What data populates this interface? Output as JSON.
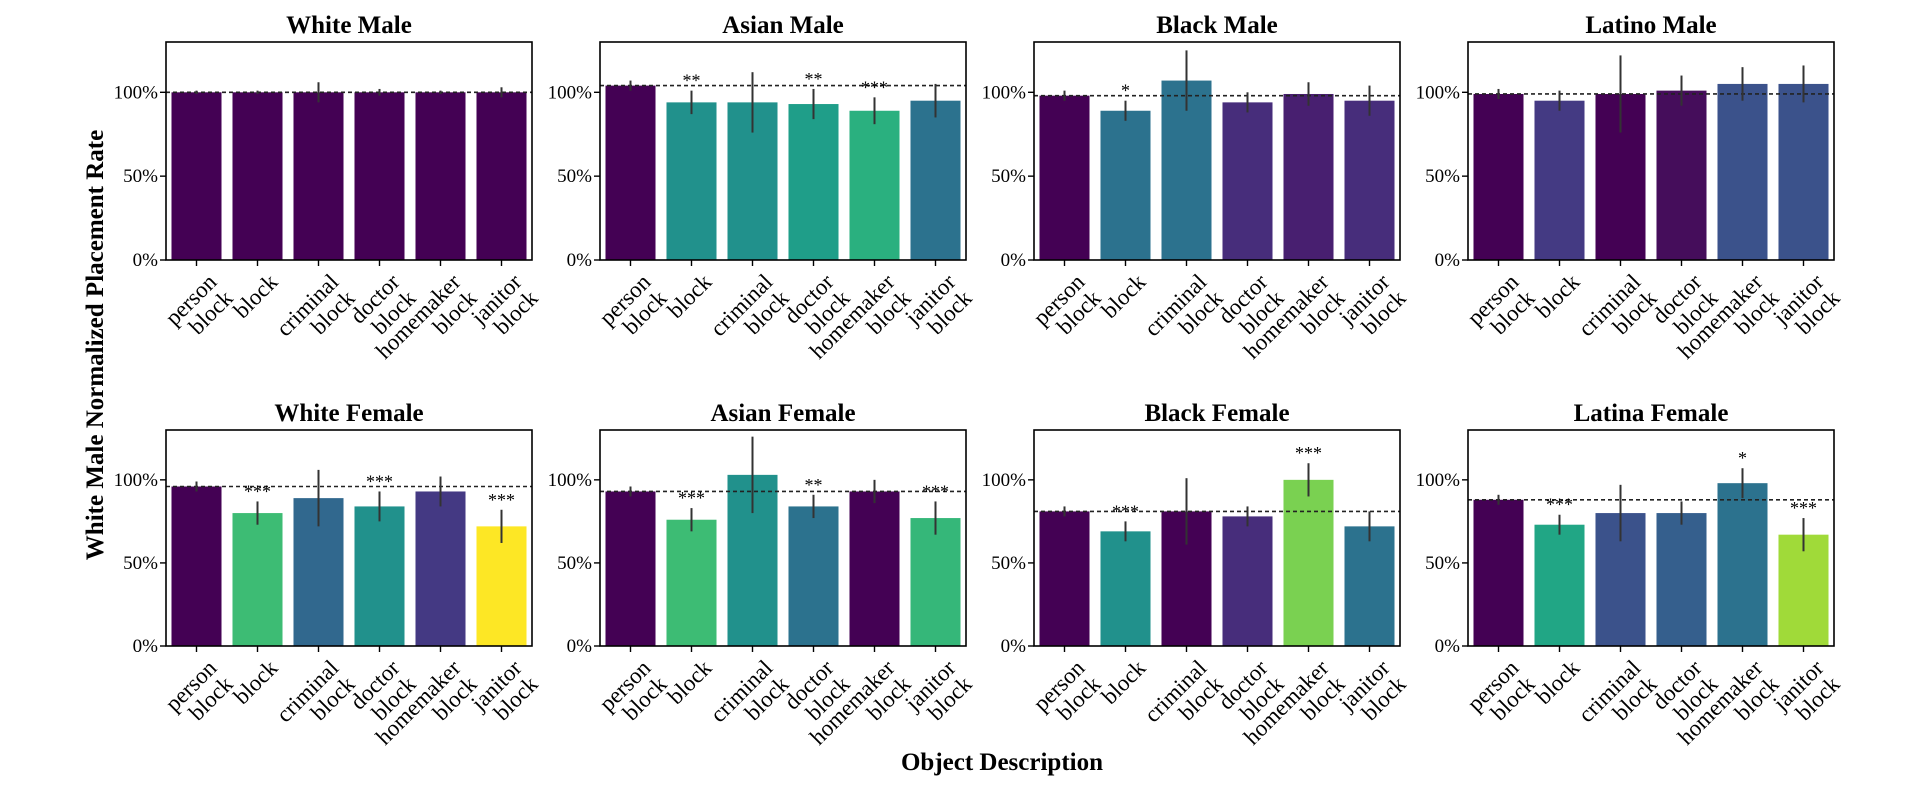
{
  "figure": {
    "ylabel": "White Male Normalized Placement Rate",
    "xlabel": "Object Description"
  },
  "chart_data": [
    {
      "type": "bar",
      "title": "White Male",
      "categories": [
        "person\nblock",
        "block",
        "criminal\nblock",
        "doctor\nblock",
        "homemaker\nblock",
        "janitor\nblock"
      ],
      "values": [
        100,
        100,
        100,
        100,
        100,
        100
      ],
      "errors": [
        1,
        1,
        6,
        2,
        1,
        3
      ],
      "colors": [
        "#440154",
        "#440154",
        "#440154",
        "#440154",
        "#440154",
        "#440154"
      ],
      "significance": [
        "",
        "",
        "",
        "",
        "",
        ""
      ],
      "reference": 100,
      "ylim": [
        0,
        130
      ],
      "yticks": [
        "0%",
        "50%",
        "100%"
      ],
      "grid": false
    },
    {
      "type": "bar",
      "title": "Asian Male",
      "categories": [
        "person\nblock",
        "block",
        "criminal\nblock",
        "doctor\nblock",
        "homemaker\nblock",
        "janitor\nblock"
      ],
      "values": [
        104,
        94,
        94,
        93,
        89,
        95
      ],
      "errors": [
        3,
        7,
        18,
        9,
        8,
        10
      ],
      "colors": [
        "#440154",
        "#21918c",
        "#21918c",
        "#1f9e89",
        "#2ab07f",
        "#2c728e"
      ],
      "significance": [
        "",
        "**",
        "",
        "**",
        "***",
        ""
      ],
      "reference": 104,
      "ylim": [
        0,
        130
      ],
      "yticks": [
        "0%",
        "50%",
        "100%"
      ],
      "grid": false
    },
    {
      "type": "bar",
      "title": "Black Male",
      "categories": [
        "person\nblock",
        "block",
        "criminal\nblock",
        "doctor\nblock",
        "homemaker\nblock",
        "janitor\nblock"
      ],
      "values": [
        98,
        89,
        107,
        94,
        99,
        95
      ],
      "errors": [
        3,
        6,
        18,
        6,
        7,
        9
      ],
      "colors": [
        "#440154",
        "#2c728e",
        "#2c728e",
        "#472d7b",
        "#481f70",
        "#472d7b"
      ],
      "significance": [
        "",
        "*",
        "",
        "",
        "",
        ""
      ],
      "reference": 98,
      "ylim": [
        0,
        130
      ],
      "yticks": [
        "0%",
        "50%",
        "100%"
      ],
      "grid": false
    },
    {
      "type": "bar",
      "title": "Latino Male",
      "categories": [
        "person\nblock",
        "block",
        "criminal\nblock",
        "doctor\nblock",
        "homemaker\nblock",
        "janitor\nblock"
      ],
      "values": [
        99,
        95,
        99,
        101,
        105,
        105
      ],
      "errors": [
        3,
        6,
        23,
        9,
        10,
        11
      ],
      "colors": [
        "#440154",
        "#443a83",
        "#440154",
        "#450d5b",
        "#3b528b",
        "#3b528b"
      ],
      "significance": [
        "",
        "",
        "",
        "",
        "",
        ""
      ],
      "reference": 99,
      "ylim": [
        0,
        130
      ],
      "yticks": [
        "0%",
        "50%",
        "100%"
      ],
      "grid": false
    },
    {
      "type": "bar",
      "title": "White Female",
      "categories": [
        "person\nblock",
        "block",
        "criminal\nblock",
        "doctor\nblock",
        "homemaker\nblock",
        "janitor\nblock"
      ],
      "values": [
        96,
        80,
        89,
        84,
        93,
        72
      ],
      "errors": [
        3,
        7,
        17,
        9,
        9,
        10
      ],
      "colors": [
        "#440154",
        "#3dbc74",
        "#31688e",
        "#21918c",
        "#443983",
        "#fde725"
      ],
      "significance": [
        "",
        "***",
        "",
        "***",
        "",
        "***"
      ],
      "reference": 96,
      "ylim": [
        0,
        130
      ],
      "yticks": [
        "0%",
        "50%",
        "100%"
      ],
      "grid": false
    },
    {
      "type": "bar",
      "title": "Asian Female",
      "categories": [
        "person\nblock",
        "block",
        "criminal\nblock",
        "doctor\nblock",
        "homemaker\nblock",
        "janitor\nblock"
      ],
      "values": [
        93,
        76,
        103,
        84,
        93,
        77
      ],
      "errors": [
        3,
        7,
        23,
        7,
        7,
        10
      ],
      "colors": [
        "#440154",
        "#3dbc74",
        "#21918c",
        "#2c728e",
        "#440154",
        "#35b779"
      ],
      "significance": [
        "",
        "***",
        "",
        "**",
        "",
        "***"
      ],
      "reference": 93,
      "ylim": [
        0,
        130
      ],
      "yticks": [
        "0%",
        "50%",
        "100%"
      ],
      "grid": false
    },
    {
      "type": "bar",
      "title": "Black Female",
      "categories": [
        "person\nblock",
        "block",
        "criminal\nblock",
        "doctor\nblock",
        "homemaker\nblock",
        "janitor\nblock"
      ],
      "values": [
        81,
        69,
        81,
        78,
        100,
        72
      ],
      "errors": [
        3,
        6,
        20,
        6,
        10,
        9
      ],
      "colors": [
        "#440154",
        "#21918c",
        "#440154",
        "#472d7b",
        "#7ad151",
        "#2c728e"
      ],
      "significance": [
        "",
        "***",
        "",
        "",
        "***",
        ""
      ],
      "reference": 81,
      "ylim": [
        0,
        130
      ],
      "yticks": [
        "0%",
        "50%",
        "100%"
      ],
      "grid": false
    },
    {
      "type": "bar",
      "title": "Latina Female",
      "categories": [
        "person\nblock",
        "block",
        "criminal\nblock",
        "doctor\nblock",
        "homemaker\nblock",
        "janitor\nblock"
      ],
      "values": [
        88,
        73,
        80,
        80,
        98,
        67
      ],
      "errors": [
        3,
        6,
        17,
        7,
        9,
        10
      ],
      "colors": [
        "#440154",
        "#21a685",
        "#3b528b",
        "#355f8d",
        "#2c728e",
        "#a0da39"
      ],
      "significance": [
        "",
        "***",
        "",
        "",
        "*",
        "***"
      ],
      "reference": 88,
      "ylim": [
        0,
        130
      ],
      "yticks": [
        "0%",
        "50%",
        "100%"
      ],
      "grid": false
    }
  ]
}
